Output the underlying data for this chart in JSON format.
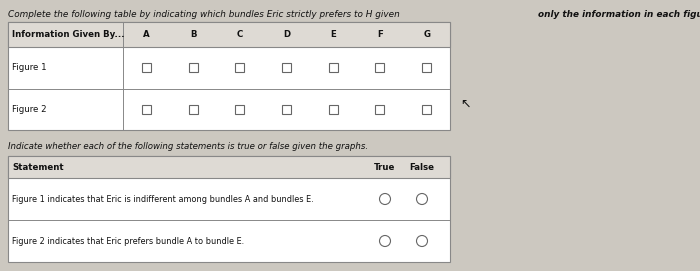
{
  "bg_color": "#ccc8c0",
  "title_normal": "Complete the following table by indicating which bundles Eric strictly prefers to H given ",
  "title_bold": "only the information in each figure.",
  "col_labels": [
    "A",
    "B",
    "C",
    "D",
    "E",
    "F",
    "G"
  ],
  "row_labels": [
    "Figure 1",
    "Figure 2"
  ],
  "middle_text": "Indicate whether each of the following statements is true or false given the graphs.",
  "stmt1": "Figure 1 indicates that Eric is indifferent among bundles A and bundles E.",
  "stmt2": "Figure 2 indicates that Eric prefers bundle A to bundle E.",
  "table1_facecolor": "#f0ede8",
  "table2_facecolor": "#f0ede8",
  "header_facecolor": "#dedad4",
  "line_color": "#888888",
  "text_color": "#111111",
  "white": "#ffffff"
}
